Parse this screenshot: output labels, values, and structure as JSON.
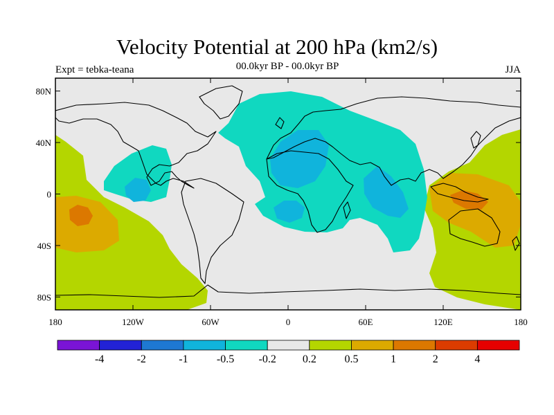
{
  "map": {
    "title": "Velocity Potential at 200 hPa (km2/s)",
    "subtitle_center": "00.0kyr BP - 00.0kyr BP",
    "subtitle_left": "Expt = tebka-teana",
    "subtitle_right": "JJA",
    "lon_range": [
      -180,
      180
    ],
    "lat_range": [
      -90,
      90
    ],
    "lat_ticks": [
      {
        "lat": 80,
        "label": "80N"
      },
      {
        "lat": 40,
        "label": "40N"
      },
      {
        "lat": 0,
        "label": "0"
      },
      {
        "lat": -40,
        "label": "40S"
      },
      {
        "lat": -80,
        "label": "80S"
      }
    ],
    "lon_ticks": [
      {
        "lon": -180,
        "label": "180"
      },
      {
        "lon": -120,
        "label": "120W"
      },
      {
        "lon": -60,
        "label": "60W"
      },
      {
        "lon": 0,
        "label": "0"
      },
      {
        "lon": 60,
        "label": "60E"
      },
      {
        "lon": 120,
        "label": "120E"
      },
      {
        "lon": 180,
        "label": "180"
      }
    ],
    "background_color": "#e8e8e8"
  },
  "colorbar": {
    "colors": [
      "#7a14d6",
      "#2222d6",
      "#1e78d2",
      "#10b4dc",
      "#10d8c0",
      "#e8e8e8",
      "#b4d600",
      "#dcaa00",
      "#dc7800",
      "#dc3c00",
      "#e60000"
    ],
    "labels": [
      "-4",
      "-2",
      "-1",
      "-0.5",
      "-0.2",
      "0.2",
      "0.5",
      "1",
      "2",
      "4"
    ]
  }
}
